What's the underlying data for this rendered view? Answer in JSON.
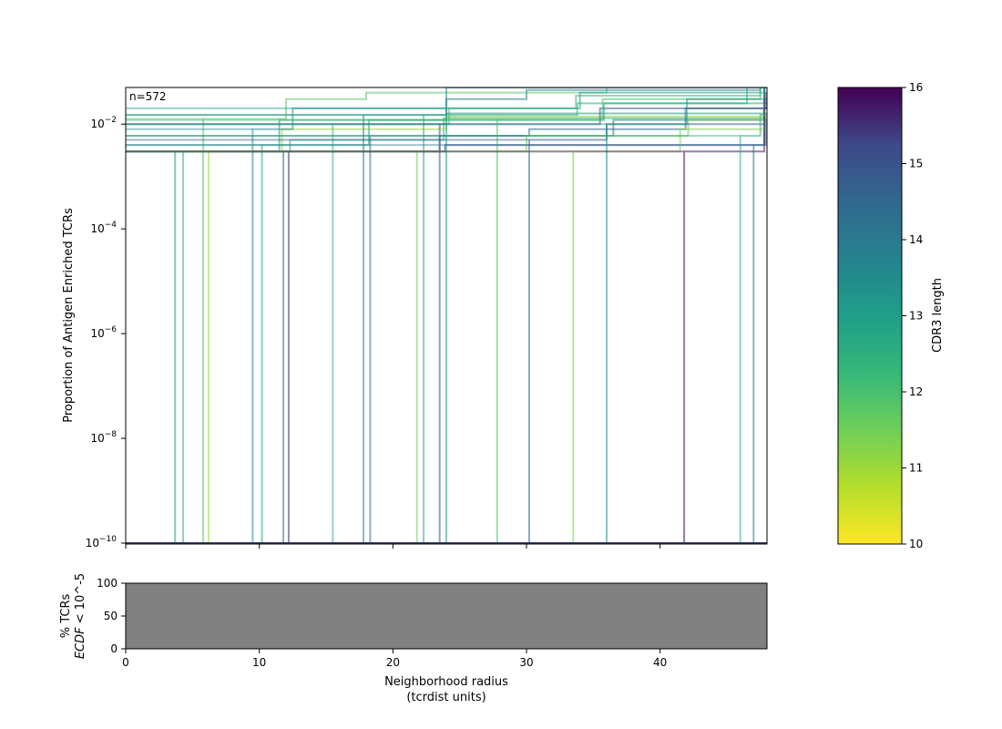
{
  "chart_data": [
    {
      "type": "line",
      "subtype": "step-ecdf",
      "annotation": "n=572",
      "ylabel": "Proportion of Antigen Enriched TCRs",
      "y_scale": "log",
      "ylim_exp": [
        -10,
        -1.3
      ],
      "y_ticks": [
        {
          "base": "10",
          "exp": "−2",
          "value": 0.01
        },
        {
          "base": "10",
          "exp": "−4",
          "value": 0.0001
        },
        {
          "base": "10",
          "exp": "−6",
          "value": 1e-06
        },
        {
          "base": "10",
          "exp": "−8",
          "value": 1e-08
        },
        {
          "base": "10",
          "exp": "−10",
          "value": 1e-10
        }
      ],
      "xlim": [
        0,
        48
      ],
      "x_ticks": [
        0,
        10,
        20,
        30,
        40
      ],
      "colormap": "viridis_r",
      "series": [
        {
          "cdr3_length": 13.2,
          "x": [
            3.7,
            11.5,
            24.0
          ],
          "y": [
            0.003,
            0.012,
            0.016
          ]
        },
        {
          "cdr3_length": 12.5,
          "x": [
            4.3,
            12.3,
            23.8
          ],
          "y": [
            0.003,
            0.005,
            0.013
          ]
        },
        {
          "cdr3_length": 11.8,
          "x": [
            5.8,
            12.0,
            18.0,
            36.0
          ],
          "y": [
            0.0125,
            0.03,
            0.04,
            0.055
          ]
        },
        {
          "cdr3_length": 11.0,
          "x": [
            6.2,
            11.7,
            24.0
          ],
          "y": [
            0.003,
            0.008,
            0.014
          ]
        },
        {
          "cdr3_length": 13.5,
          "x": [
            9.5,
            12.5,
            24.0
          ],
          "y": [
            0.008,
            0.02,
            0.05
          ]
        },
        {
          "cdr3_length": 12.8,
          "x": [
            10.2,
            18.2,
            35.8
          ],
          "y": [
            0.004,
            0.012,
            0.025
          ]
        },
        {
          "cdr3_length": 14.2,
          "x": [
            11.8,
            23.5,
            36.5,
            47.8
          ],
          "y": [
            0.003,
            0.006,
            0.012,
            0.05
          ]
        },
        {
          "cdr3_length": 15.5,
          "x": [
            12.2,
            23.9,
            47.8
          ],
          "y": [
            0.003,
            0.004,
            0.06
          ]
        },
        {
          "cdr3_length": 12.2,
          "x": [
            15.5,
            24.2,
            33.7,
            47.5
          ],
          "y": [
            0.01,
            0.02,
            0.035,
            0.09
          ]
        },
        {
          "cdr3_length": 13.8,
          "x": [
            17.8,
            24.0,
            30.0,
            47.5
          ],
          "y": [
            0.015,
            0.03,
            0.045,
            0.08
          ]
        },
        {
          "cdr3_length": 14.5,
          "x": [
            18.3,
            30.2,
            41.9
          ],
          "y": [
            0.006,
            0.008,
            0.02
          ]
        },
        {
          "cdr3_length": 11.5,
          "x": [
            21.8,
            30.0,
            42.1
          ],
          "y": [
            0.003,
            0.006,
            0.012
          ]
        },
        {
          "cdr3_length": 12.6,
          "x": [
            22.3,
            33.8,
            46.5
          ],
          "y": [
            0.015,
            0.025,
            0.07
          ]
        },
        {
          "cdr3_length": 15.0,
          "x": [
            23.5,
            35.5,
            47.9
          ],
          "y": [
            0.01,
            0.02,
            0.04
          ]
        },
        {
          "cdr3_length": 13.0,
          "x": [
            24.0,
            34.0,
            47.8
          ],
          "y": [
            0.02,
            0.04,
            0.1
          ]
        },
        {
          "cdr3_length": 12.0,
          "x": [
            27.8,
            35.7,
            47.5
          ],
          "y": [
            0.012,
            0.03,
            0.06
          ]
        },
        {
          "cdr3_length": 14.8,
          "x": [
            30.2,
            36.0,
            47.8
          ],
          "y": [
            0.005,
            0.01,
            0.03
          ]
        },
        {
          "cdr3_length": 11.3,
          "x": [
            33.5,
            41.5,
            47.8
          ],
          "y": [
            0.003,
            0.008,
            0.02
          ]
        },
        {
          "cdr3_length": 13.3,
          "x": [
            36.0,
            42.0,
            47.8
          ],
          "y": [
            0.01,
            0.03,
            0.11
          ]
        },
        {
          "cdr3_length": 15.8,
          "x": [
            41.8,
            47.8
          ],
          "y": [
            0.003,
            0.02
          ]
        },
        {
          "cdr3_length": 12.4,
          "x": [
            46.0,
            47.5
          ],
          "y": [
            0.006,
            0.015
          ]
        },
        {
          "cdr3_length": 14.0,
          "x": [
            47.0,
            47.9
          ],
          "y": [
            0.004,
            0.012
          ]
        }
      ]
    },
    {
      "type": "bar",
      "ylabel": "% TCRs",
      "ylabel2_italic": "ECDF",
      "ylabel2_rest": " < 10^-5",
      "xlabel": "Neighborhood radius",
      "xlabel2": "(tcrdist units)",
      "xlim": [
        0,
        48
      ],
      "x_ticks": [
        0,
        10,
        20,
        30,
        40
      ],
      "ylim": [
        0,
        100
      ],
      "y_ticks": [
        0,
        50,
        100
      ],
      "fill_value": 100,
      "fill_color": "#808080"
    },
    {
      "type": "heatmap",
      "label": "CDR3 length",
      "range": [
        10,
        16
      ],
      "ticks": [
        10,
        11,
        12,
        13,
        14,
        15,
        16
      ]
    }
  ]
}
